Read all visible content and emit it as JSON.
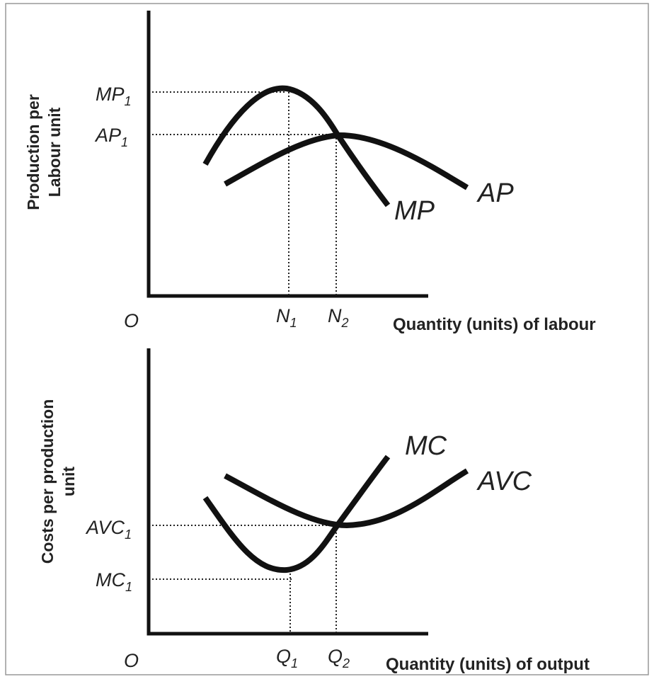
{
  "top": {
    "y_label": [
      "Production per",
      "Labour unit"
    ],
    "x_label": "Quantity (units) of labour",
    "origin": "O",
    "y_marks": [
      {
        "main": "MP",
        "sub": "1"
      },
      {
        "main": "AP",
        "sub": "1"
      }
    ],
    "x_marks": [
      {
        "main": "N",
        "sub": "1"
      },
      {
        "main": "N",
        "sub": "2"
      }
    ],
    "curves": [
      "MP",
      "AP"
    ]
  },
  "bottom": {
    "y_label": [
      "Costs per production",
      "unit"
    ],
    "x_label": "Quantity (units) of output",
    "origin": "O",
    "y_marks": [
      {
        "main": "AVC",
        "sub": "1"
      },
      {
        "main": "MC",
        "sub": "1"
      }
    ],
    "x_marks": [
      {
        "main": "Q",
        "sub": "1"
      },
      {
        "main": "Q",
        "sub": "2"
      }
    ],
    "curves": [
      "MC",
      "AVC"
    ]
  }
}
